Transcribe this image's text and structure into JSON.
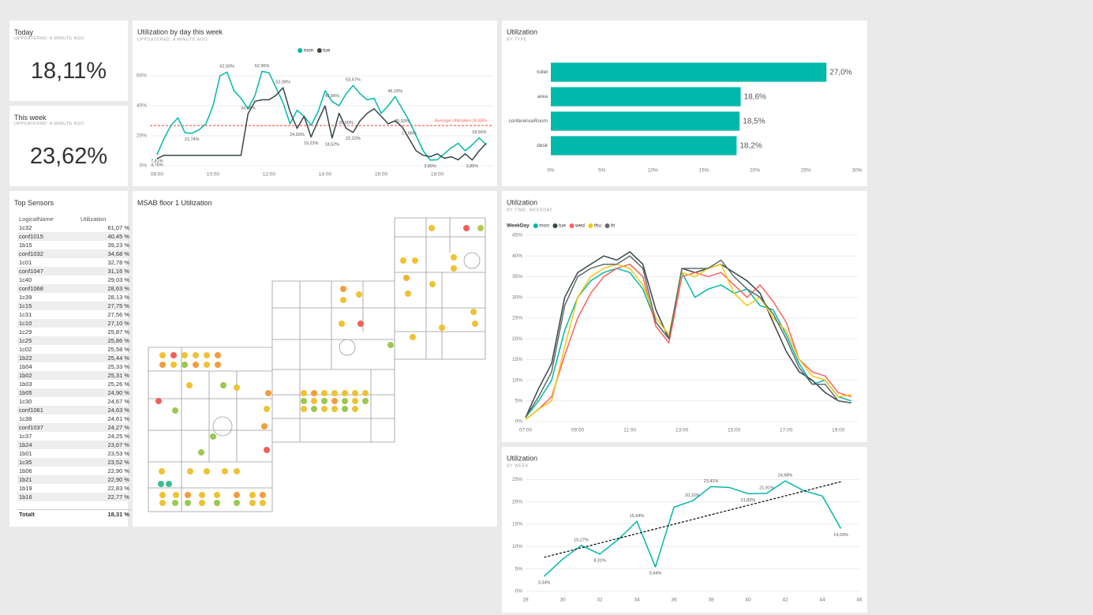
{
  "cards": [
    {
      "title": "Today",
      "subtitle": "UPPDATERAD: A MINUTE AGO",
      "value": "18,11%"
    },
    {
      "title": "This week",
      "subtitle": "UPPDATERAD: A MINUTE AGO",
      "value": "23,62%"
    }
  ],
  "table": {
    "title": "Top Sensors",
    "columns": [
      "LogicalName",
      "Utilization"
    ],
    "rows": [
      [
        "1c32",
        "61,07 %"
      ],
      [
        "conf1015",
        "40,45 %"
      ],
      [
        "1b15",
        "39,23 %"
      ],
      [
        "conf1032",
        "34,68 %"
      ],
      [
        "1c01",
        "32,78 %"
      ],
      [
        "conf1047",
        "31,16 %"
      ],
      [
        "1c40",
        "29,03 %"
      ],
      [
        "conf1068",
        "28,63 %"
      ],
      [
        "1c39",
        "28,13 %"
      ],
      [
        "1c15",
        "27,75 %"
      ],
      [
        "1c31",
        "27,56 %"
      ],
      [
        "1c10",
        "27,10 %"
      ],
      [
        "1c29",
        "25,87 %"
      ],
      [
        "1c25",
        "25,86 %"
      ],
      [
        "1c02",
        "25,58 %"
      ],
      [
        "1b22",
        "25,44 %"
      ],
      [
        "1b04",
        "25,33 %"
      ],
      [
        "1b02",
        "25,31 %"
      ],
      [
        "1b03",
        "25,26 %"
      ],
      [
        "1b05",
        "24,90 %"
      ],
      [
        "1c30",
        "24,67 %"
      ],
      [
        "conf1061",
        "24,63 %"
      ],
      [
        "1c38",
        "24,61 %"
      ],
      [
        "conf1037",
        "24,27 %"
      ],
      [
        "1c37",
        "24,25 %"
      ],
      [
        "1b24",
        "23,67 %"
      ],
      [
        "1b01",
        "23,53 %"
      ],
      [
        "1c35",
        "23,52 %"
      ],
      [
        "1b06",
        "22,90 %"
      ],
      [
        "1b21",
        "22,90 %"
      ],
      [
        "1b19",
        "22,83 %"
      ],
      [
        "1b16",
        "22,77 %"
      ]
    ],
    "total": [
      "Totalt",
      "18,31 %"
    ]
  },
  "map": {
    "title": "MSAB floor 1 Utilization"
  },
  "chart_data": [
    {
      "type": "line",
      "title": "Utilization by day this week",
      "subtitle": "UPPDATERAD: A MINUTE AGO",
      "legend": "top-center",
      "grid": true,
      "x": [
        8,
        8.25,
        8.5,
        8.75,
        9,
        9.25,
        9.5,
        9.75,
        10,
        10.25,
        10.5,
        10.75,
        11,
        11.25,
        11.5,
        11.75,
        12,
        12.25,
        12.5,
        12.75,
        13,
        13.25,
        13.5,
        13.75,
        14,
        14.25,
        14.5,
        14.75,
        15,
        15.25,
        15.5,
        15.75,
        16,
        16.25,
        16.5,
        16.75,
        17,
        17.25,
        17.5,
        17.75,
        18,
        18.25,
        18.5,
        18.75,
        19,
        19.25,
        19.5,
        19.75
      ],
      "series": [
        {
          "name": "mon",
          "color": "#01b8aa",
          "values": [
            7.41,
            18,
            27,
            32,
            22,
            21.74,
            24,
            28,
            40,
            60,
            62.5,
            50,
            45,
            38,
            47,
            62.96,
            62,
            52,
            42,
            28,
            37,
            33,
            27,
            36,
            50,
            42.86,
            40,
            48,
            53.57,
            48,
            44,
            45,
            35,
            40,
            46.15,
            38,
            30,
            20,
            10,
            3.85,
            4,
            8,
            12,
            15,
            10,
            14,
            18.56,
            14
          ],
          "value_labels": [
            "7,41%",
            null,
            null,
            null,
            null,
            "21,74%",
            null,
            null,
            null,
            null,
            "62,50%",
            null,
            null,
            null,
            null,
            "62,96%",
            null,
            null,
            null,
            null,
            null,
            null,
            null,
            null,
            null,
            "42,86%",
            null,
            null,
            "53,57%",
            null,
            null,
            null,
            null,
            null,
            "46,15%",
            null,
            null,
            null,
            null,
            "3,85%",
            null,
            null,
            null,
            null,
            null,
            null,
            "18,56%",
            null
          ]
        },
        {
          "name": "tue",
          "color": "#374649",
          "values": [
            4.76,
            7,
            7,
            7,
            7,
            7,
            7,
            7,
            7,
            7,
            7,
            7,
            7,
            34.68,
            43,
            44,
            44,
            47,
            52.09,
            36,
            24.93,
            33,
            19.23,
            30,
            40,
            18.52,
            35,
            25,
            22.22,
            30,
            35,
            38,
            33,
            28,
            30,
            25.93,
            17.98,
            10,
            7,
            6,
            8,
            5,
            6,
            4,
            8,
            3.85,
            10,
            15
          ],
          "value_labels": [
            "4,76%",
            null,
            null,
            null,
            null,
            null,
            null,
            null,
            null,
            null,
            null,
            null,
            null,
            "34,68%",
            null,
            null,
            null,
            null,
            "52,09%",
            null,
            "24,93%",
            null,
            "19,23%",
            null,
            null,
            "18,52%",
            null,
            "25,00%",
            "22,22%",
            null,
            null,
            null,
            null,
            null,
            null,
            "25,93%",
            "17,98%",
            null,
            null,
            null,
            null,
            null,
            null,
            null,
            null,
            "3,85%",
            null,
            null
          ]
        }
      ],
      "reference_line": {
        "value": 26.83,
        "label": "Average Utilization 26,83%",
        "color": "#fd625e"
      },
      "xlim": [
        7.75,
        20
      ],
      "xticks": [
        {
          "value": 8,
          "label": "08:00"
        },
        {
          "value": 10,
          "label": "10:00"
        },
        {
          "value": 12,
          "label": "12:00"
        },
        {
          "value": 14,
          "label": "14:00"
        },
        {
          "value": 16,
          "label": "16:00"
        },
        {
          "value": 18,
          "label": "18:00"
        }
      ],
      "ylim": [
        0,
        70
      ],
      "yticks": [
        {
          "value": 0,
          "label": "0%"
        },
        {
          "value": 20,
          "label": "20%"
        },
        {
          "value": 40,
          "label": "40%"
        },
        {
          "value": 60,
          "label": "60%"
        }
      ]
    },
    {
      "type": "bar",
      "orientation": "horizontal",
      "title": "Utilization",
      "subtitle": "BY TYPE",
      "grid": false,
      "color": "#01b8aa",
      "categories": [
        "toilet",
        "area",
        "conferenceRoom",
        "desk"
      ],
      "values": [
        27.0,
        18.6,
        18.5,
        18.2
      ],
      "value_labels": [
        "27,0%",
        "18,6%",
        "18,5%",
        "18,2%"
      ],
      "xlim": [
        0,
        30
      ],
      "xticks": [
        {
          "value": 0,
          "label": "0%"
        },
        {
          "value": 5,
          "label": "5%"
        },
        {
          "value": 10,
          "label": "10%"
        },
        {
          "value": 15,
          "label": "15%"
        },
        {
          "value": 20,
          "label": "20%"
        },
        {
          "value": 25,
          "label": "25%"
        },
        {
          "value": 30,
          "label": "30%"
        }
      ]
    },
    {
      "type": "line",
      "title": "Utilization",
      "subtitle": "BY TIME, WEEKDAY",
      "legend": "top-left",
      "legend_title": "WeekDay",
      "grid": true,
      "x": [
        7,
        7.5,
        8,
        8.5,
        9,
        9.5,
        10,
        10.5,
        11,
        11.5,
        12,
        12.5,
        13,
        13.5,
        14,
        14.5,
        15,
        15.5,
        16,
        16.5,
        17,
        17.5,
        18,
        18.5,
        19,
        19.5
      ],
      "series": [
        {
          "name": "mon",
          "color": "#01b8aa",
          "values": [
            1,
            5,
            10,
            22,
            30,
            34,
            36,
            37,
            36,
            32,
            24,
            20,
            36,
            30,
            32,
            33,
            31,
            32,
            28,
            27,
            21,
            14,
            9,
            10,
            6,
            5
          ]
        },
        {
          "name": "tue",
          "color": "#374649",
          "values": [
            1,
            8,
            14,
            30,
            36,
            38,
            40,
            39,
            41,
            38,
            27,
            20,
            37,
            36,
            37,
            38,
            36,
            34,
            31,
            24,
            17,
            12,
            10,
            7,
            5,
            4.5
          ]
        },
        {
          "name": "wed",
          "color": "#fd625e",
          "values": [
            0.5,
            3,
            6,
            16,
            25,
            31,
            35,
            37,
            38,
            35,
            23,
            19,
            35,
            36,
            35,
            36,
            33,
            30,
            33,
            29,
            24,
            15,
            12,
            11,
            7,
            6
          ]
        },
        {
          "name": "thu",
          "color": "#f2c80f",
          "values": [
            0.5,
            3,
            5,
            18,
            30,
            35,
            37,
            38,
            37,
            33,
            25,
            21,
            36,
            35,
            37,
            38,
            31,
            28,
            30,
            25,
            22,
            15,
            11,
            10,
            6,
            6.5
          ]
        },
        {
          "name": "fri",
          "color": "#5f6b6d",
          "values": [
            1,
            6,
            12,
            28,
            35,
            37,
            38,
            38,
            40,
            37,
            24,
            20,
            37,
            37,
            37,
            39,
            35,
            32,
            30,
            26,
            20,
            13,
            9,
            9,
            5,
            4.5
          ]
        }
      ],
      "xlim": [
        7,
        19.75
      ],
      "xticks": [
        {
          "value": 7,
          "label": "07:00"
        },
        {
          "value": 9,
          "label": "09:00"
        },
        {
          "value": 11,
          "label": "11:00"
        },
        {
          "value": 13,
          "label": "13:00"
        },
        {
          "value": 15,
          "label": "15:00"
        },
        {
          "value": 17,
          "label": "17:00"
        },
        {
          "value": 19,
          "label": "19:00"
        }
      ],
      "ylim": [
        0,
        45
      ],
      "yticks": [
        {
          "value": 0,
          "label": "0%"
        },
        {
          "value": 5,
          "label": "5%"
        },
        {
          "value": 10,
          "label": "10%"
        },
        {
          "value": 15,
          "label": "15%"
        },
        {
          "value": 20,
          "label": "20%"
        },
        {
          "value": 25,
          "label": "25%"
        },
        {
          "value": 30,
          "label": "30%"
        },
        {
          "value": 35,
          "label": "35%"
        },
        {
          "value": 40,
          "label": "40%"
        },
        {
          "value": 45,
          "label": "45%"
        }
      ]
    },
    {
      "type": "line",
      "title": "Utilization",
      "subtitle": "BY WEEK",
      "grid": true,
      "x": [
        29,
        30,
        31,
        32,
        33,
        34,
        35,
        36,
        37,
        38,
        39,
        40,
        41,
        42,
        43,
        44,
        45
      ],
      "series": [
        {
          "color": "#01b8aa",
          "values": [
            3.34,
            7.2,
            10.27,
            8.31,
            11.6,
            15.64,
            5.44,
            18.8,
            20.22,
            23.41,
            23.2,
            21.82,
            21.91,
            24.68,
            22.5,
            21.3,
            14.03
          ],
          "value_labels": [
            "3,34%",
            null,
            "10,27%",
            "8,31%",
            null,
            "15,64%",
            "5,44%",
            null,
            "20,22%",
            "23,41%",
            null,
            "21,82%",
            "21,91%",
            "24,68%",
            null,
            null,
            "14,03%"
          ]
        }
      ],
      "trend_line": {
        "x": [
          29,
          45
        ],
        "values": [
          7.6,
          24.5
        ],
        "color": "#000000"
      },
      "xlim": [
        28,
        46
      ],
      "xticks": [
        28,
        30,
        32,
        34,
        36,
        38,
        40,
        42,
        44,
        46
      ],
      "ylim": [
        0,
        27
      ],
      "yticks": [
        {
          "value": 0,
          "label": "0%"
        },
        {
          "value": 5,
          "label": "5%"
        },
        {
          "value": 10,
          "label": "10%"
        },
        {
          "value": 15,
          "label": "15%"
        },
        {
          "value": 20,
          "label": "20%"
        },
        {
          "value": 25,
          "label": "25%"
        }
      ]
    }
  ]
}
